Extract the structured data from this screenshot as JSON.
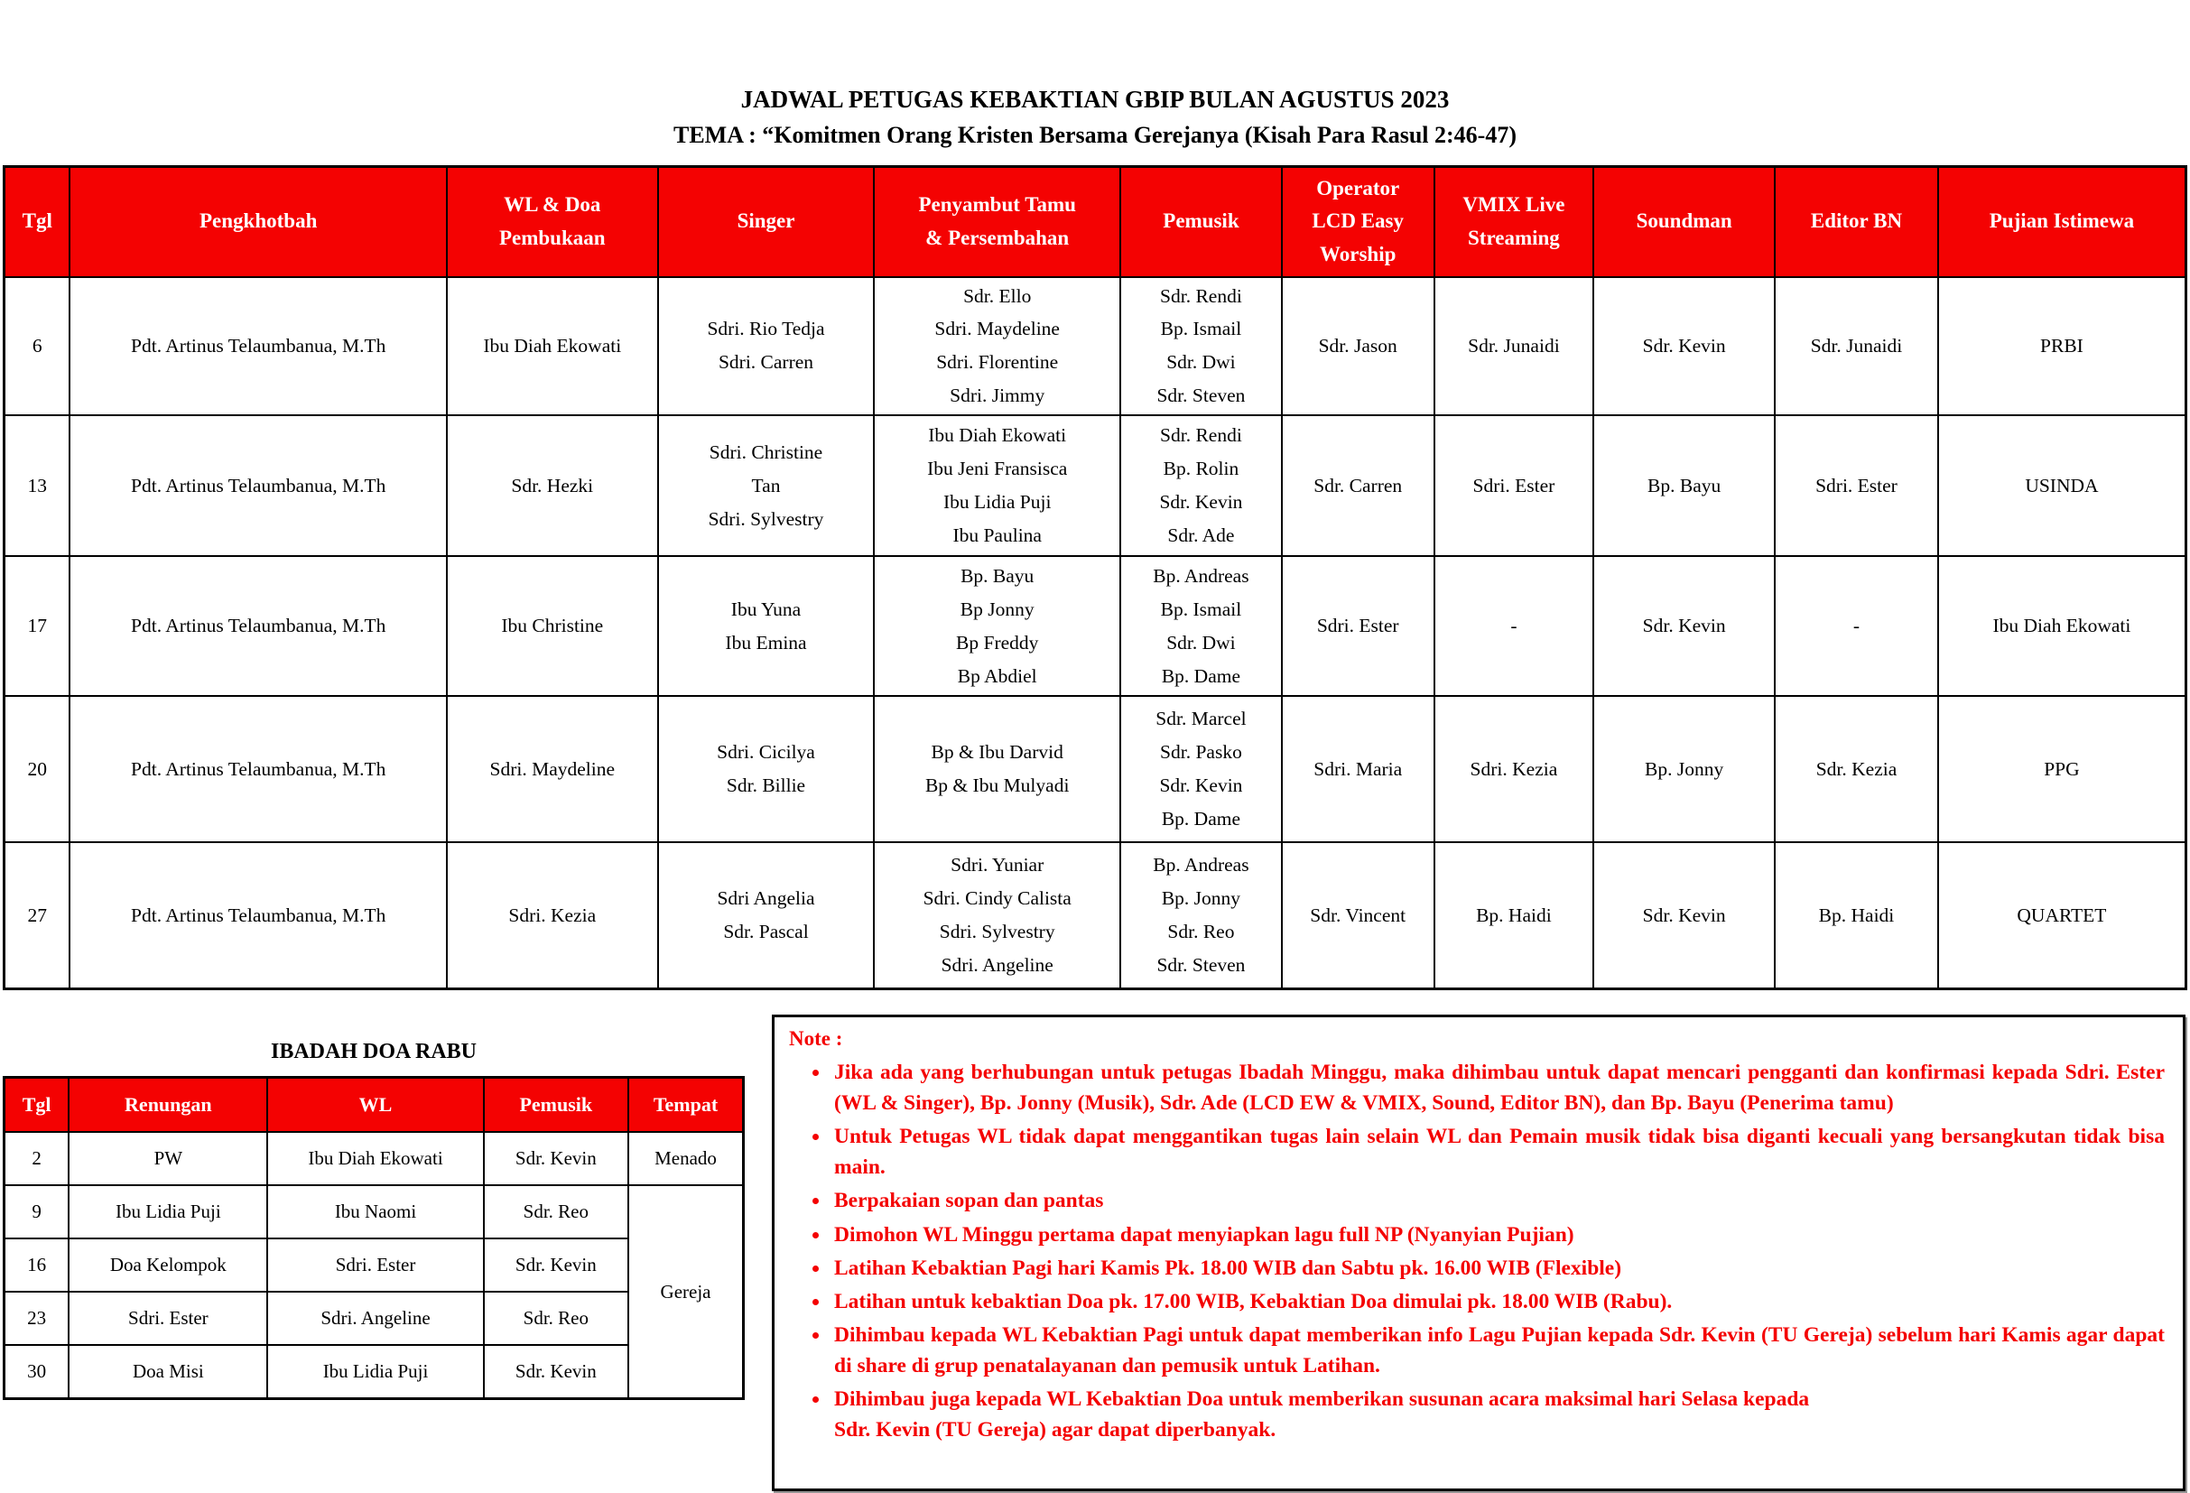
{
  "colors": {
    "accent_red": "#f40202"
  },
  "document": {
    "title": "JADWAL PETUGAS KEBAKTIAN GBIP BULAN AGUSTUS 2023",
    "subtitle": "TEMA : “Komitmen Orang Kristen Bersama Gerejanya (Kisah Para Rasul 2:46-47)"
  },
  "main_table": {
    "headers": [
      [
        "Tgl"
      ],
      [
        "Pengkhotbah"
      ],
      [
        "WL & Doa",
        "Pembukaan"
      ],
      [
        "Singer"
      ],
      [
        "Penyambut Tamu",
        "& Persembahan"
      ],
      [
        "Pemusik"
      ],
      [
        "Operator",
        "LCD Easy",
        "Worship"
      ],
      [
        "VMIX Live",
        "Streaming"
      ],
      [
        "Soundman"
      ],
      [
        "Editor BN"
      ],
      [
        "Pujian Istimewa"
      ]
    ],
    "rows": [
      {
        "tgl": "6",
        "pengkhotbah": "Pdt. Artinus Telaumbanua, M.Th",
        "wl": "Ibu Diah Ekowati",
        "singer": [
          "Sdri. Rio Tedja",
          "Sdri. Carren"
        ],
        "penyambut": [
          "Sdr. Ello",
          "Sdri. Maydeline",
          "Sdri. Florentine",
          "Sdri. Jimmy"
        ],
        "pemusik": [
          "Sdr. Rendi",
          "Bp. Ismail",
          "Sdr. Dwi",
          "Sdr. Steven"
        ],
        "operator": "Sdr. Jason",
        "vmix": "Sdr. Junaidi",
        "soundman": "Sdr. Kevin",
        "editor": "Sdr. Junaidi",
        "pujian": "PRBI"
      },
      {
        "tgl": "13",
        "pengkhotbah": "Pdt. Artinus Telaumbanua, M.Th",
        "wl": "Sdr. Hezki",
        "singer": [
          "Sdri. Christine",
          "Tan",
          "Sdri. Sylvestry"
        ],
        "penyambut": [
          "Ibu Diah Ekowati",
          "Ibu Jeni Fransisca",
          "Ibu Lidia Puji",
          "Ibu Paulina"
        ],
        "pemusik": [
          "Sdr. Rendi",
          "Bp. Rolin",
          "Sdr. Kevin",
          "Sdr. Ade"
        ],
        "operator": "Sdr. Carren",
        "vmix": "Sdri. Ester",
        "soundman": "Bp. Bayu",
        "editor": "Sdri. Ester",
        "pujian": "USINDA"
      },
      {
        "tgl": "17",
        "pengkhotbah": "Pdt. Artinus Telaumbanua, M.Th",
        "wl": "Ibu Christine",
        "singer": [
          "Ibu Yuna",
          "Ibu Emina"
        ],
        "penyambut": [
          "Bp. Bayu",
          "Bp Jonny",
          "Bp Freddy",
          "Bp Abdiel"
        ],
        "pemusik": [
          "Bp. Andreas",
          "Bp. Ismail",
          "Sdr. Dwi",
          "Bp. Dame"
        ],
        "operator": "Sdri. Ester",
        "vmix": "-",
        "soundman": "Sdr. Kevin",
        "editor": "-",
        "pujian": "Ibu Diah Ekowati"
      },
      {
        "tgl": "20",
        "pengkhotbah": "Pdt. Artinus Telaumbanua, M.Th",
        "wl": "Sdri. Maydeline",
        "singer": [
          "Sdri. Cicilya",
          "Sdr. Billie"
        ],
        "penyambut": [
          "Bp & Ibu Darvid",
          "Bp & Ibu Mulyadi"
        ],
        "pemusik": [
          "Sdr. Marcel",
          "Sdr. Pasko",
          "Sdr. Kevin",
          "Bp. Dame"
        ],
        "operator": "Sdri. Maria",
        "vmix": "Sdri. Kezia",
        "soundman": "Bp. Jonny",
        "editor": "Sdr. Kezia",
        "pujian": "PPG"
      },
      {
        "tgl": "27",
        "pengkhotbah": "Pdt. Artinus Telaumbanua, M.Th",
        "wl": "Sdri. Kezia",
        "singer": [
          "Sdri Angelia",
          "Sdr. Pascal"
        ],
        "penyambut": [
          "Sdri. Yuniar",
          "Sdri. Cindy Calista",
          "Sdri. Sylvestry",
          "Sdri. Angeline"
        ],
        "pemusik": [
          "Bp. Andreas",
          "Bp. Jonny",
          "Sdr. Reo",
          "Sdr. Steven"
        ],
        "operator": "Sdr. Vincent",
        "vmix": "Bp. Haidi",
        "soundman": "Sdr. Kevin",
        "editor": "Bp. Haidi",
        "pujian": "QUARTET"
      }
    ]
  },
  "ibadah": {
    "title": "IBADAH DOA RABU",
    "headers": [
      "Tgl",
      "Renungan",
      "WL",
      "Pemusik",
      "Tempat"
    ],
    "rows": [
      {
        "tgl": "2",
        "renungan": "PW",
        "wl": "Ibu Diah Ekowati",
        "pemusik": "Sdr. Kevin",
        "tempat": "Menado"
      },
      {
        "tgl": "9",
        "renungan": "Ibu Lidia Puji",
        "wl": "Ibu Naomi",
        "pemusik": "Sdr. Reo",
        "tempat": "Gereja"
      },
      {
        "tgl": "16",
        "renungan": "Doa Kelompok",
        "wl": "Sdri. Ester",
        "pemusik": "Sdr. Kevin"
      },
      {
        "tgl": "23",
        "renungan": "Sdri. Ester",
        "wl": "Sdri. Angeline",
        "pemusik": "Sdr. Reo"
      },
      {
        "tgl": "30",
        "renungan": "Doa Misi",
        "wl": "Ibu Lidia Puji",
        "pemusik": "Sdr. Kevin"
      }
    ]
  },
  "note": {
    "heading": "Note :",
    "items": [
      "Jika ada yang berhubungan untuk petugas Ibadah Minggu, maka dihimbau untuk dapat mencari pengganti dan konfirmasi kepada Sdri. Ester (WL & Singer), Bp. Jonny (Musik), Sdr. Ade (LCD EW & VMIX, Sound, Editor BN), dan Bp. Bayu (Penerima tamu)",
      "Untuk Petugas WL tidak dapat menggantikan tugas lain selain WL dan Pemain musik tidak bisa diganti kecuali yang bersangkutan tidak bisa main.",
      "Berpakaian sopan dan pantas",
      "Dimohon WL Minggu pertama dapat menyiapkan lagu full NP (Nyanyian Pujian)",
      "Latihan Kebaktian Pagi hari Kamis Pk. 18.00 WIB dan Sabtu pk. 16.00 WIB (Flexible)",
      "Latihan untuk kebaktian Doa pk. 17.00 WIB, Kebaktian Doa dimulai pk. 18.00 WIB (Rabu).",
      "Dihimbau kepada WL Kebaktian Pagi untuk dapat memberikan info Lagu Pujian kepada Sdr. Kevin (TU Gereja) sebelum hari Kamis agar dapat di share di grup penatalayanan dan pemusik untuk Latihan.",
      [
        "Dihimbau juga kepada WL Kebaktian Doa untuk memberikan susunan acara maksimal hari Selasa kepada",
        "Sdr. Kevin (TU Gereja) agar dapat diperbanyak."
      ]
    ]
  }
}
